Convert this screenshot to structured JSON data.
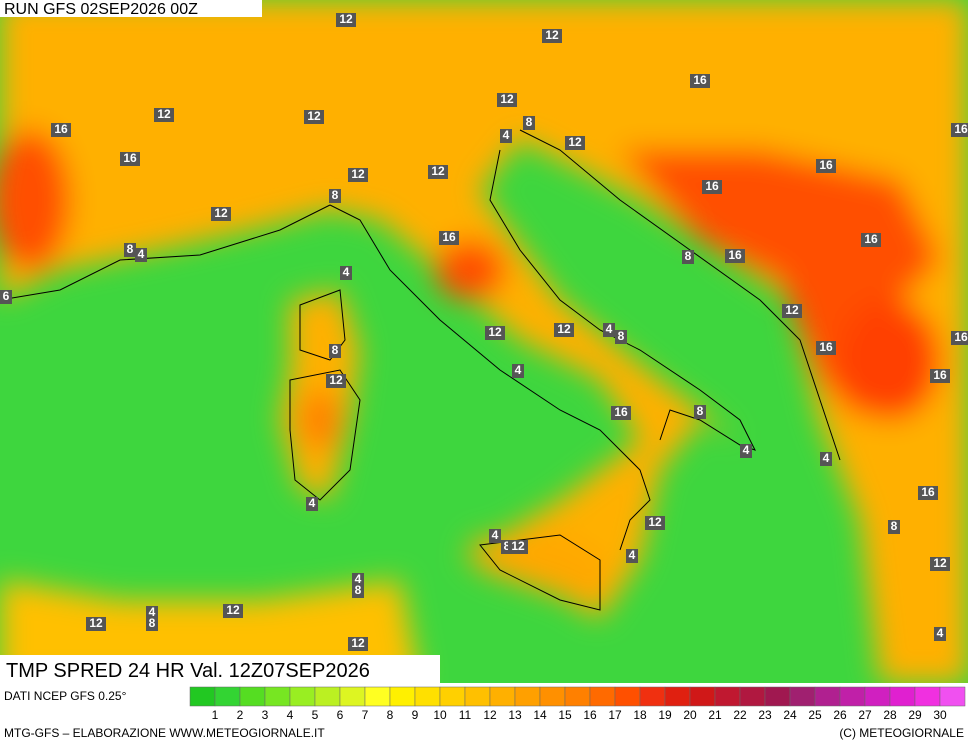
{
  "header": {
    "run": "RUN GFS 02SEP2026 00Z"
  },
  "product": {
    "title": "TMP SPRED 24 HR Val. 12Z07SEP2026",
    "source": "DATI NCEP GFS 0.25°"
  },
  "footer": {
    "left": "MTG-GFS – ELABORAZIONE WWW.METEOGIORNALE.IT",
    "right": "(C) METEOGIORNALE"
  },
  "contour_labels": [
    "12",
    "12",
    "16",
    "12",
    "12",
    "12",
    "4",
    "8",
    "16",
    "12",
    "16",
    "12",
    "12",
    "16",
    "16",
    "8",
    "12",
    "16",
    "16",
    "8",
    "4",
    "8",
    "16",
    "4",
    "6",
    "12",
    "12",
    "12",
    "4",
    "8",
    "8",
    "16",
    "12",
    "4",
    "16",
    "16",
    "8",
    "4",
    "4",
    "4",
    "16",
    "12",
    "8",
    "4",
    "8",
    "12",
    "4",
    "12",
    "4",
    "8",
    "12",
    "4",
    "8",
    "12",
    "12",
    "4",
    "16",
    "16"
  ],
  "legend": {
    "ticks": [
      1,
      2,
      3,
      4,
      5,
      6,
      7,
      8,
      9,
      10,
      11,
      12,
      13,
      14,
      15,
      16,
      17,
      18,
      19,
      20,
      21,
      22,
      23,
      24,
      25,
      26,
      27,
      28,
      29,
      30
    ],
    "colors": [
      "#22c822",
      "#33d433",
      "#55dd22",
      "#77e622",
      "#99ee22",
      "#bbf022",
      "#ddf522",
      "#ffff22",
      "#fff000",
      "#ffe000",
      "#ffd000",
      "#ffc000",
      "#ffb000",
      "#ffa000",
      "#ff9000",
      "#ff8000",
      "#ff6a00",
      "#ff5000",
      "#f03010",
      "#e02010",
      "#d01818",
      "#c01830",
      "#b01840",
      "#a01850",
      "#a02070",
      "#b02090",
      "#c020a8",
      "#d020c0",
      "#e020d0",
      "#f030e0",
      "#f050f0"
    ]
  }
}
